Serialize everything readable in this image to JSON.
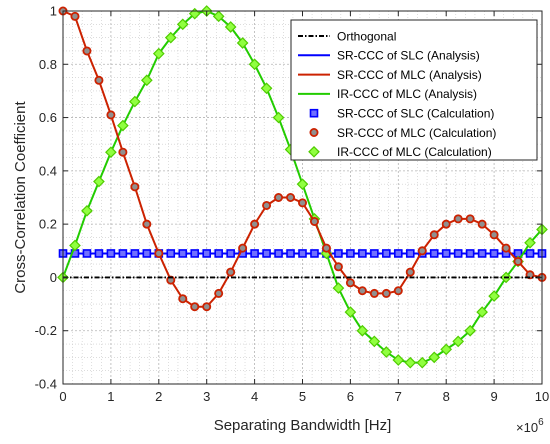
{
  "chart_data": {
    "type": "line",
    "xlabel": "Separating Bandwidth [Hz]",
    "ylabel": "Cross-Correlation Coefficient",
    "x_multiplier_label": "×10",
    "x_multiplier_exponent": "6",
    "xlim": [
      0,
      10
    ],
    "ylim": [
      -0.4,
      1
    ],
    "x_ticks": [
      0,
      1,
      2,
      3,
      4,
      5,
      6,
      7,
      8,
      9,
      10
    ],
    "y_ticks": [
      -0.4,
      -0.2,
      0,
      0.2,
      0.4,
      0.6,
      0.8,
      1
    ],
    "x_tick_labels": [
      "0",
      "1",
      "2",
      "3",
      "4",
      "5",
      "6",
      "7",
      "8",
      "9",
      "10"
    ],
    "y_tick_labels": [
      "-0.4",
      "-0.2",
      "0",
      "0.2",
      "0.4",
      "0.6",
      "0.8",
      "1"
    ],
    "grid": true,
    "minor_grid": true,
    "legend_position": "top-right",
    "x": [
      0,
      0.25,
      0.5,
      0.75,
      1,
      1.25,
      1.5,
      1.75,
      2,
      2.25,
      2.5,
      2.75,
      3,
      3.25,
      3.5,
      3.75,
      4,
      4.25,
      4.5,
      4.75,
      5,
      5.25,
      5.5,
      5.75,
      6,
      6.25,
      6.5,
      6.75,
      7,
      7.25,
      7.5,
      7.75,
      8,
      8.25,
      8.5,
      8.75,
      9,
      9.25,
      9.5,
      9.75,
      10
    ],
    "series": [
      {
        "name": "Orthogonal",
        "color": "#000000",
        "style": "dash-dot",
        "marker": "none",
        "values": [
          0,
          0,
          0,
          0,
          0,
          0,
          0,
          0,
          0,
          0,
          0,
          0,
          0,
          0,
          0,
          0,
          0,
          0,
          0,
          0,
          0,
          0,
          0,
          0,
          0,
          0,
          0,
          0,
          0,
          0,
          0,
          0,
          0,
          0,
          0,
          0,
          0,
          0,
          0,
          0,
          0
        ]
      },
      {
        "name": "SR-CCC of SLC (Analysis)",
        "color": "#0000ff",
        "style": "solid",
        "marker": "none",
        "values": [
          0.09,
          0.09,
          0.09,
          0.09,
          0.09,
          0.09,
          0.09,
          0.09,
          0.09,
          0.09,
          0.09,
          0.09,
          0.09,
          0.09,
          0.09,
          0.09,
          0.09,
          0.09,
          0.09,
          0.09,
          0.09,
          0.09,
          0.09,
          0.09,
          0.09,
          0.09,
          0.09,
          0.09,
          0.09,
          0.09,
          0.09,
          0.09,
          0.09,
          0.09,
          0.09,
          0.09,
          0.09,
          0.09,
          0.09,
          0.09,
          0.09
        ]
      },
      {
        "name": "SR-CCC of MLC (Analysis)",
        "color": "#cc2200",
        "style": "solid",
        "marker": "none",
        "values": [
          1,
          0.98,
          0.85,
          0.74,
          0.61,
          0.47,
          0.34,
          0.2,
          0.09,
          -0.01,
          -0.08,
          -0.11,
          -0.11,
          -0.06,
          0.02,
          0.11,
          0.2,
          0.27,
          0.3,
          0.3,
          0.28,
          0.21,
          0.11,
          0.04,
          -0.02,
          -0.05,
          -0.06,
          -0.06,
          -0.05,
          0.02,
          0.1,
          0.16,
          0.2,
          0.22,
          0.22,
          0.2,
          0.16,
          0.11,
          0.06,
          0.01,
          0
        ]
      },
      {
        "name": "IR-CCC of MLC (Analysis)",
        "color": "#22cc00",
        "style": "solid",
        "marker": "none",
        "values": [
          0,
          0.12,
          0.25,
          0.36,
          0.47,
          0.57,
          0.66,
          0.74,
          0.84,
          0.9,
          0.95,
          0.99,
          1,
          0.98,
          0.94,
          0.88,
          0.8,
          0.71,
          0.6,
          0.48,
          0.35,
          0.22,
          0.09,
          -0.04,
          -0.13,
          -0.2,
          -0.24,
          -0.28,
          -0.31,
          -0.32,
          -0.32,
          -0.3,
          -0.27,
          -0.24,
          -0.2,
          -0.13,
          -0.07,
          0,
          0.06,
          0.13,
          0.18
        ]
      },
      {
        "name": "SR-CCC of SLC (Calculation)",
        "color": "#0000ff",
        "style": "none",
        "marker": "square",
        "values": [
          0.09,
          0.09,
          0.09,
          0.09,
          0.09,
          0.09,
          0.09,
          0.09,
          0.09,
          0.09,
          0.09,
          0.09,
          0.09,
          0.09,
          0.09,
          0.09,
          0.09,
          0.09,
          0.09,
          0.09,
          0.09,
          0.09,
          0.09,
          0.09,
          0.09,
          0.09,
          0.09,
          0.09,
          0.09,
          0.09,
          0.09,
          0.09,
          0.09,
          0.09,
          0.09,
          0.09,
          0.09,
          0.09,
          0.09,
          0.09,
          0.09
        ]
      },
      {
        "name": "SR-CCC of MLC (Calculation)",
        "color": "#cc2200",
        "style": "none",
        "marker": "circle",
        "values": [
          1,
          0.98,
          0.85,
          0.74,
          0.61,
          0.47,
          0.34,
          0.2,
          0.09,
          -0.01,
          -0.08,
          -0.11,
          -0.11,
          -0.06,
          0.02,
          0.11,
          0.2,
          0.27,
          0.3,
          0.3,
          0.28,
          0.21,
          0.11,
          0.04,
          -0.02,
          -0.05,
          -0.06,
          -0.06,
          -0.05,
          0.02,
          0.1,
          0.16,
          0.2,
          0.22,
          0.22,
          0.2,
          0.16,
          0.11,
          0.06,
          0.01,
          0
        ]
      },
      {
        "name": "IR-CCC of MLC (Calculation)",
        "color": "#22cc00",
        "style": "none",
        "marker": "diamond",
        "values": [
          0,
          0.12,
          0.25,
          0.36,
          0.47,
          0.57,
          0.66,
          0.74,
          0.84,
          0.9,
          0.95,
          0.99,
          1,
          0.98,
          0.94,
          0.88,
          0.8,
          0.71,
          0.6,
          0.48,
          0.35,
          0.22,
          0.09,
          -0.04,
          -0.13,
          -0.2,
          -0.24,
          -0.28,
          -0.31,
          -0.32,
          -0.32,
          -0.3,
          -0.27,
          -0.24,
          -0.2,
          -0.13,
          -0.07,
          0,
          0.06,
          0.13,
          0.18
        ]
      }
    ]
  }
}
